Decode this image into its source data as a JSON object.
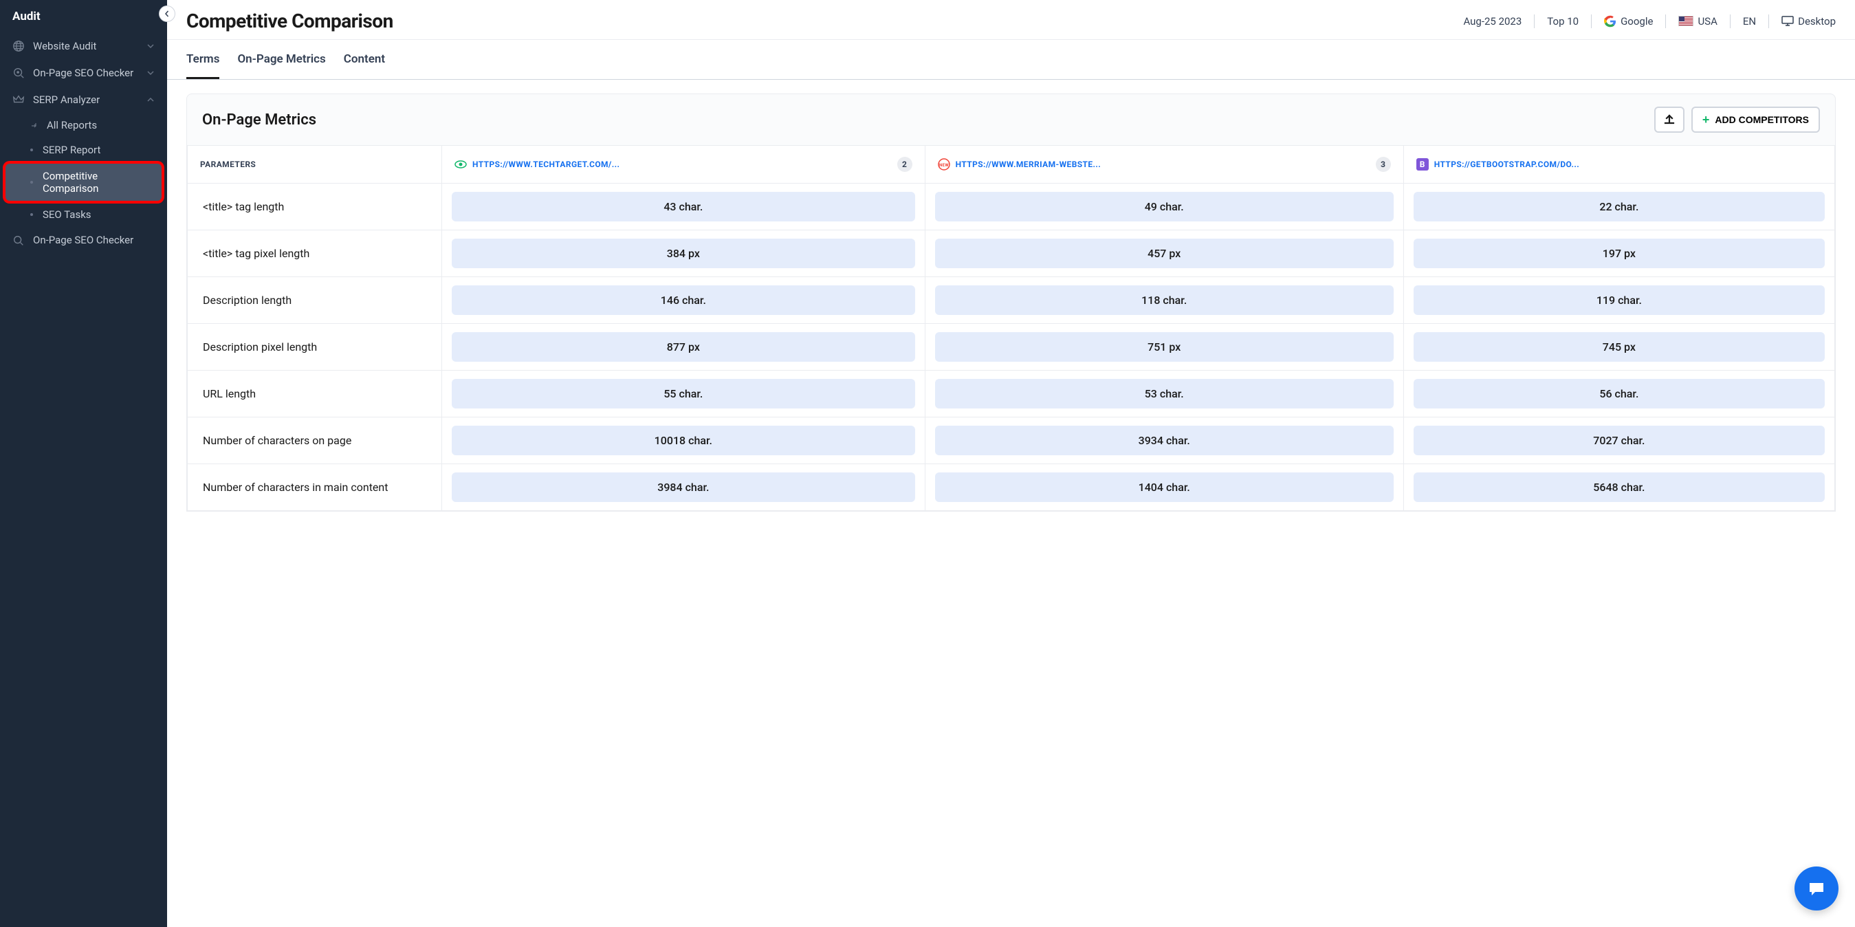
{
  "sidebar": {
    "title": "Audit",
    "items": [
      {
        "label": "Website Audit",
        "icon": "globe",
        "expandable": true,
        "expanded": false
      },
      {
        "label": "On-Page SEO Checker",
        "icon": "magnify-eye",
        "expandable": true,
        "expanded": false
      },
      {
        "label": "SERP Analyzer",
        "icon": "crown",
        "expandable": true,
        "expanded": true,
        "children": [
          {
            "label": "All Reports",
            "icon": "arrow"
          },
          {
            "label": "SERP Report",
            "icon": "dot"
          },
          {
            "label": "Competitive Comparison",
            "icon": "dot",
            "active": true,
            "highlighted": true
          },
          {
            "label": "SEO Tasks",
            "icon": "dot"
          }
        ]
      },
      {
        "label": "On-Page SEO Checker",
        "icon": "magnify",
        "expandable": false
      }
    ]
  },
  "header": {
    "title": "Competitive Comparison",
    "controls": {
      "date": "Aug-25 2023",
      "top": "Top 10",
      "engine": "Google",
      "country": "USA",
      "lang": "EN",
      "device": "Desktop"
    }
  },
  "tabs": [
    {
      "label": "Terms",
      "active": true
    },
    {
      "label": "On-Page Metrics",
      "active": false
    },
    {
      "label": "Content",
      "active": false
    }
  ],
  "panel": {
    "title": "On-Page Metrics",
    "add_btn": "ADD COMPETITORS"
  },
  "table": {
    "param_header": "PARAMETERS",
    "columns": [
      {
        "url": "HTTPS://WWW.TECHTARGET.COM/...",
        "badge": "2",
        "icon": "eye",
        "icon_color": "#12b76a"
      },
      {
        "url": "HTTPS://WWW.MERRIAM-WEBSTE...",
        "badge": "3",
        "icon": "new",
        "icon_color": "#f04438"
      },
      {
        "url": "HTTPS://GETBOOTSTRAP.COM/DO...",
        "badge": "",
        "icon": "B",
        "icon_color": "#7f56d9"
      }
    ],
    "rows": [
      {
        "param": "<title> tag length",
        "values": [
          "43 char.",
          "49 char.",
          "22 char."
        ]
      },
      {
        "param": "<title> tag pixel length",
        "values": [
          "384 px",
          "457 px",
          "197 px"
        ]
      },
      {
        "param": "Description length",
        "values": [
          "146 char.",
          "118 char.",
          "119 char."
        ]
      },
      {
        "param": "Description pixel length",
        "values": [
          "877 px",
          "751 px",
          "745 px"
        ]
      },
      {
        "param": "URL length",
        "values": [
          "55 char.",
          "53 char.",
          "56 char."
        ]
      },
      {
        "param": "Number of characters on page",
        "values": [
          "10018 char.",
          "3934 char.",
          "7027 char."
        ]
      },
      {
        "param": "Number of characters in main content",
        "values": [
          "3984 char.",
          "1404 char.",
          "5648 char."
        ]
      }
    ],
    "pill_bg": "#e4ecfb"
  }
}
